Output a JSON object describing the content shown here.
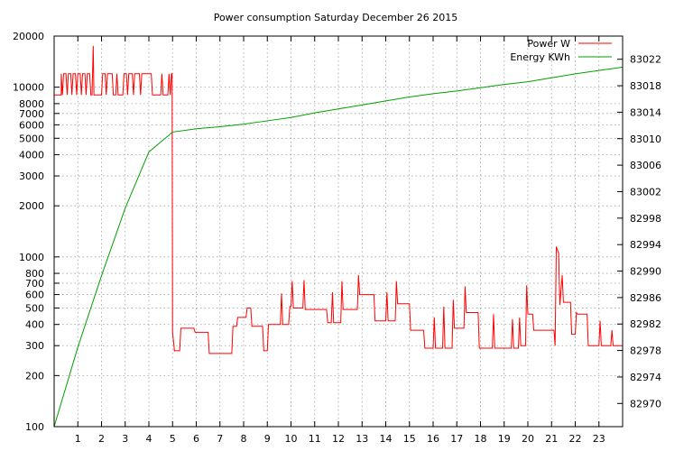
{
  "chart_data": {
    "type": "line",
    "title": "Power consumption Saturday December 26 2015",
    "x": {
      "range": [
        0,
        24
      ],
      "tick_labels": [
        "1",
        "2",
        "3",
        "4",
        "5",
        "6",
        "7",
        "8",
        "9",
        "10",
        "11",
        "12",
        "13",
        "14",
        "15",
        "16",
        "17",
        "18",
        "19",
        "20",
        "21",
        "22",
        "23"
      ]
    },
    "y_left": {
      "scale": "log",
      "range": [
        100,
        20000
      ],
      "tick_values": [
        100,
        200,
        300,
        400,
        500,
        600,
        700,
        800,
        1000,
        2000,
        3000,
        4000,
        5000,
        6000,
        7000,
        8000,
        10000,
        20000
      ],
      "tick_labels": [
        "100",
        "200",
        "300",
        "400",
        "500",
        "600",
        "700",
        "800",
        "1000",
        "2000",
        "3000",
        "4000",
        "5000",
        "6000",
        "7000",
        "8000",
        "10000",
        "20000"
      ]
    },
    "y_right": {
      "scale": "linear",
      "range": [
        82966.5,
        83025.5
      ],
      "tick_values": [
        82970,
        82974,
        82978,
        82982,
        82986,
        82990,
        82994,
        82998,
        83002,
        83006,
        83010,
        83014,
        83018,
        83022
      ],
      "tick_labels": [
        "82970",
        "82974",
        "82978",
        "82982",
        "82986",
        "82990",
        "82994",
        "82998",
        "83002",
        "83006",
        "83010",
        "83014",
        "83018",
        "83022"
      ]
    },
    "grid": true,
    "legend_position": "top-right",
    "series": [
      {
        "name": "Power W",
        "axis": "left",
        "color": "#ff0000",
        "points": [
          [
            0,
            9000
          ],
          [
            0.3,
            9000
          ],
          [
            0.3,
            12000
          ],
          [
            0.35,
            9000
          ],
          [
            0.4,
            12000
          ],
          [
            0.5,
            12000
          ],
          [
            0.55,
            9000
          ],
          [
            0.6,
            12000
          ],
          [
            0.7,
            12000
          ],
          [
            0.75,
            9000
          ],
          [
            0.8,
            12000
          ],
          [
            0.9,
            12000
          ],
          [
            0.95,
            9000
          ],
          [
            1.0,
            12000
          ],
          [
            1.1,
            12000
          ],
          [
            1.15,
            9000
          ],
          [
            1.2,
            12000
          ],
          [
            1.3,
            12000
          ],
          [
            1.35,
            9000
          ],
          [
            1.4,
            12000
          ],
          [
            1.5,
            12000
          ],
          [
            1.55,
            9000
          ],
          [
            1.6,
            9000
          ],
          [
            1.65,
            17500
          ],
          [
            1.68,
            9000
          ],
          [
            2.0,
            9000
          ],
          [
            2.05,
            12000
          ],
          [
            2.15,
            12000
          ],
          [
            2.2,
            9000
          ],
          [
            2.25,
            12000
          ],
          [
            2.45,
            12000
          ],
          [
            2.5,
            9000
          ],
          [
            2.6,
            9000
          ],
          [
            2.65,
            12000
          ],
          [
            2.7,
            9000
          ],
          [
            2.9,
            9000
          ],
          [
            2.95,
            12000
          ],
          [
            3.05,
            12000
          ],
          [
            3.1,
            9000
          ],
          [
            3.15,
            12000
          ],
          [
            3.3,
            12000
          ],
          [
            3.35,
            9000
          ],
          [
            3.4,
            12000
          ],
          [
            3.6,
            12000
          ],
          [
            3.65,
            9000
          ],
          [
            3.7,
            12000
          ],
          [
            4.1,
            12000
          ],
          [
            4.15,
            9000
          ],
          [
            4.5,
            9000
          ],
          [
            4.55,
            12000
          ],
          [
            4.6,
            9000
          ],
          [
            4.8,
            9000
          ],
          [
            4.85,
            12000
          ],
          [
            4.9,
            9000
          ],
          [
            4.95,
            12000
          ],
          [
            4.98,
            12000
          ],
          [
            5.0,
            360
          ],
          [
            5.08,
            280
          ],
          [
            5.3,
            280
          ],
          [
            5.35,
            380
          ],
          [
            5.9,
            380
          ],
          [
            5.95,
            360
          ],
          [
            6.5,
            360
          ],
          [
            6.55,
            270
          ],
          [
            7.5,
            270
          ],
          [
            7.55,
            390
          ],
          [
            7.7,
            390
          ],
          [
            7.75,
            440
          ],
          [
            8.1,
            440
          ],
          [
            8.15,
            500
          ],
          [
            8.3,
            500
          ],
          [
            8.35,
            390
          ],
          [
            8.8,
            390
          ],
          [
            8.85,
            280
          ],
          [
            9.0,
            280
          ],
          [
            9.05,
            400
          ],
          [
            9.55,
            400
          ],
          [
            9.6,
            610
          ],
          [
            9.65,
            400
          ],
          [
            9.9,
            400
          ],
          [
            9.95,
            510
          ],
          [
            10.0,
            510
          ],
          [
            10.05,
            720
          ],
          [
            10.1,
            500
          ],
          [
            10.5,
            500
          ],
          [
            10.55,
            730
          ],
          [
            10.6,
            490
          ],
          [
            11.5,
            490
          ],
          [
            11.55,
            410
          ],
          [
            11.7,
            410
          ],
          [
            11.75,
            620
          ],
          [
            11.8,
            410
          ],
          [
            12.1,
            410
          ],
          [
            12.15,
            720
          ],
          [
            12.2,
            490
          ],
          [
            12.8,
            490
          ],
          [
            12.85,
            780
          ],
          [
            12.9,
            600
          ],
          [
            13.5,
            600
          ],
          [
            13.55,
            420
          ],
          [
            14.0,
            420
          ],
          [
            14.05,
            620
          ],
          [
            14.1,
            420
          ],
          [
            14.4,
            420
          ],
          [
            14.45,
            720
          ],
          [
            14.5,
            530
          ],
          [
            15.0,
            530
          ],
          [
            15.05,
            370
          ],
          [
            15.6,
            370
          ],
          [
            15.65,
            290
          ],
          [
            16.0,
            290
          ],
          [
            16.05,
            440
          ],
          [
            16.1,
            290
          ],
          [
            16.4,
            290
          ],
          [
            16.45,
            510
          ],
          [
            16.5,
            290
          ],
          [
            16.8,
            290
          ],
          [
            16.85,
            560
          ],
          [
            16.9,
            380
          ],
          [
            17.3,
            380
          ],
          [
            17.35,
            670
          ],
          [
            17.4,
            470
          ],
          [
            17.9,
            470
          ],
          [
            17.95,
            290
          ],
          [
            18.5,
            290
          ],
          [
            18.55,
            460
          ],
          [
            18.6,
            290
          ],
          [
            19.3,
            290
          ],
          [
            19.35,
            430
          ],
          [
            19.4,
            290
          ],
          [
            19.6,
            290
          ],
          [
            19.65,
            440
          ],
          [
            19.7,
            300
          ],
          [
            19.9,
            300
          ],
          [
            19.95,
            680
          ],
          [
            20.0,
            460
          ],
          [
            20.2,
            460
          ],
          [
            20.25,
            370
          ],
          [
            21.1,
            370
          ],
          [
            21.15,
            300
          ],
          [
            21.2,
            1150
          ],
          [
            21.3,
            1050
          ],
          [
            21.35,
            520
          ],
          [
            21.45,
            780
          ],
          [
            21.5,
            540
          ],
          [
            21.8,
            540
          ],
          [
            21.85,
            350
          ],
          [
            22.0,
            350
          ],
          [
            22.05,
            470
          ],
          [
            22.1,
            460
          ],
          [
            22.5,
            460
          ],
          [
            22.55,
            300
          ],
          [
            23.0,
            300
          ],
          [
            23.05,
            420
          ],
          [
            23.1,
            300
          ],
          [
            23.5,
            300
          ],
          [
            23.55,
            370
          ],
          [
            23.6,
            300
          ],
          [
            24,
            300
          ]
        ]
      },
      {
        "name": "Energy KWh",
        "axis": "right",
        "color": "#00a000",
        "points": [
          [
            0,
            82966.5
          ],
          [
            1,
            82978.5
          ],
          [
            2,
            82989.3
          ],
          [
            3,
            82999.5
          ],
          [
            4,
            83008.0
          ],
          [
            5,
            83011.0
          ],
          [
            6,
            83011.5
          ],
          [
            7,
            83011.8
          ],
          [
            8,
            83012.2
          ],
          [
            9,
            83012.7
          ],
          [
            10,
            83013.2
          ],
          [
            11,
            83013.9
          ],
          [
            12,
            83014.5
          ],
          [
            13,
            83015.1
          ],
          [
            14,
            83015.7
          ],
          [
            15,
            83016.3
          ],
          [
            16,
            83016.8
          ],
          [
            17,
            83017.2
          ],
          [
            18,
            83017.7
          ],
          [
            19,
            83018.2
          ],
          [
            20,
            83018.6
          ],
          [
            21,
            83019.2
          ],
          [
            22,
            83019.8
          ],
          [
            23,
            83020.3
          ],
          [
            24,
            83020.8
          ]
        ]
      }
    ]
  }
}
